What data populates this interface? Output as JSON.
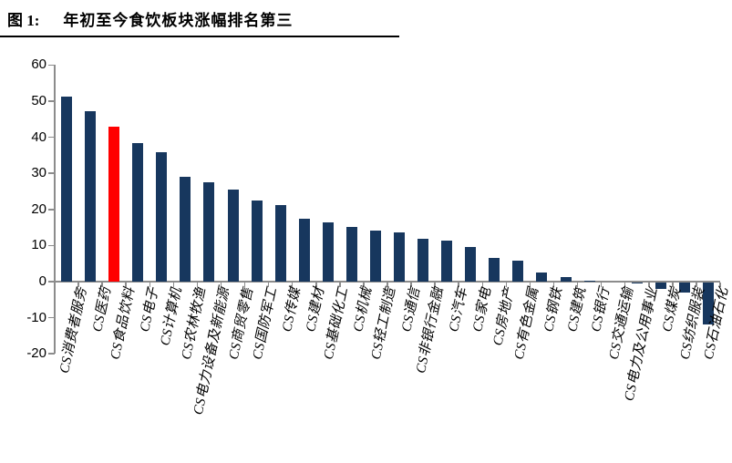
{
  "figure": {
    "label": "图 1:",
    "title": "年初至今食饮板块涨幅排名第三"
  },
  "chart_data": {
    "type": "bar",
    "title": "年初至今食饮板块涨幅排名第三",
    "xlabel": "",
    "ylabel": "",
    "categories": [
      "CS消费者服务",
      "CS医药",
      "CS食品饮料",
      "CS电子",
      "CS计算机",
      "CS农林牧渔",
      "CS电力设备及新能源",
      "CS商贸零售",
      "CS国防军工",
      "CS传媒",
      "CS建材",
      "CS基础化工",
      "CS机械",
      "CS轻工制造",
      "CS通信",
      "CS非银行金融",
      "CS汽车",
      "CS家电",
      "CS房地产",
      "CS有色金属",
      "CS钢铁",
      "CS建筑",
      "CS银行",
      "CS交通运输",
      "CS电力及公用事业",
      "CS煤炭",
      "CS纺织服装",
      "CS石油石化"
    ],
    "values": [
      51.2,
      47.1,
      42.9,
      38.3,
      35.9,
      29.0,
      27.4,
      25.6,
      22.5,
      21.2,
      17.4,
      16.3,
      15.2,
      14.1,
      13.6,
      11.9,
      11.4,
      9.7,
      6.6,
      5.7,
      2.4,
      1.3,
      0.2,
      0.0,
      -0.3,
      -1.7,
      -2.8,
      -11.5
    ],
    "highlight": {
      "index": 2,
      "category": "CS食品饮料",
      "color": "#FF0000"
    },
    "bar_color": "#17375E",
    "axis_color": "#8C8C8C",
    "ylim": [
      -20,
      60
    ],
    "yticks": [
      60,
      50,
      40,
      30,
      20,
      10,
      0,
      -10,
      -20
    ],
    "grid": false,
    "legend": false
  }
}
